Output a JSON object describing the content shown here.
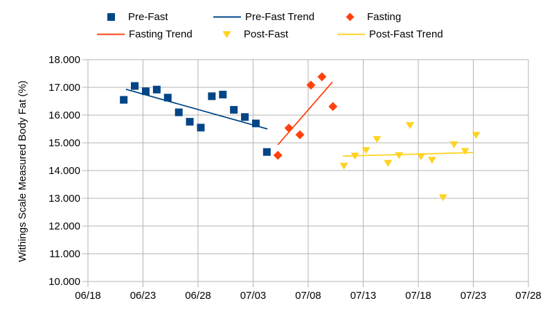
{
  "chart_data": {
    "type": "scatter",
    "title": "",
    "xlabel": "",
    "ylabel": "Withings Scale Measured Body Fat (%)",
    "background_color": "#ffffff",
    "grid_color": "#b3b3b3",
    "text_color": "#000000",
    "grid": "on",
    "legend_position": "top",
    "x_axis": {
      "tick_labels": [
        "06/18",
        "06/23",
        "06/28",
        "07/03",
        "07/08",
        "07/13",
        "07/18",
        "07/23",
        "07/28"
      ],
      "tick_interval_days": 5
    },
    "y_axis": {
      "min": 10,
      "max": 18,
      "step": 1,
      "tick_labels": [
        "10.000",
        "11.000",
        "12.000",
        "13.000",
        "14.000",
        "15.000",
        "16.000",
        "17.000",
        "18.000"
      ]
    },
    "series": [
      {
        "name": "Pre-Fast",
        "marker": "square",
        "color": "#004586",
        "points": [
          {
            "date": "06/21",
            "value": 16.55
          },
          {
            "date": "06/22",
            "value": 17.05
          },
          {
            "date": "06/23",
            "value": 16.86
          },
          {
            "date": "06/24",
            "value": 16.92
          },
          {
            "date": "06/25",
            "value": 16.63
          },
          {
            "date": "06/26",
            "value": 16.1
          },
          {
            "date": "06/27",
            "value": 15.76
          },
          {
            "date": "06/28",
            "value": 15.55
          },
          {
            "date": "06/29",
            "value": 16.68
          },
          {
            "date": "06/30",
            "value": 16.74
          },
          {
            "date": "07/01",
            "value": 16.19
          },
          {
            "date": "07/02",
            "value": 15.93
          },
          {
            "date": "07/03",
            "value": 15.7
          },
          {
            "date": "07/04",
            "value": 14.67
          }
        ]
      },
      {
        "name": "Fasting",
        "marker": "diamond",
        "color": "#ff420e",
        "points": [
          {
            "date": "07/05",
            "value": 14.55
          },
          {
            "date": "07/06",
            "value": 15.53
          },
          {
            "date": "07/07",
            "value": 15.29
          },
          {
            "date": "07/08",
            "value": 17.08
          },
          {
            "date": "07/09",
            "value": 17.38
          },
          {
            "date": "07/10",
            "value": 16.31
          }
        ]
      },
      {
        "name": "Post-Fast",
        "marker": "triangle-down",
        "color": "#ffd320",
        "points": [
          {
            "date": "07/11",
            "value": 14.17
          },
          {
            "date": "07/12",
            "value": 14.53
          },
          {
            "date": "07/13",
            "value": 14.73
          },
          {
            "date": "07/14",
            "value": 15.13
          },
          {
            "date": "07/15",
            "value": 14.27
          },
          {
            "date": "07/16",
            "value": 14.55
          },
          {
            "date": "07/17",
            "value": 15.63
          },
          {
            "date": "07/18",
            "value": 14.51
          },
          {
            "date": "07/19",
            "value": 14.38
          },
          {
            "date": "07/20",
            "value": 13.03
          },
          {
            "date": "07/21",
            "value": 14.94
          },
          {
            "date": "07/22",
            "value": 14.7
          },
          {
            "date": "07/23",
            "value": 15.28
          }
        ]
      }
    ],
    "trend_lines": [
      {
        "name": "Pre-Fast Trend",
        "color": "#004586",
        "start_day": 3.45,
        "start_value": 16.93,
        "end_day": 16.3,
        "end_value": 15.5
      },
      {
        "name": "Fasting Trend",
        "color": "#ff420e",
        "start_day": 17.25,
        "start_value": 14.93,
        "end_day": 22.2,
        "end_value": 17.19
      },
      {
        "name": "Post-Fast Trend",
        "color": "#ffd320",
        "start_day": 23.15,
        "start_value": 14.52,
        "end_day": 35.0,
        "end_value": 14.65
      }
    ],
    "legend": {
      "rows": [
        [
          {
            "label": "Pre-Fast",
            "marker": "square",
            "color": "#004586"
          },
          {
            "label": "Pre-Fast Trend",
            "marker": "line",
            "color": "#004586"
          },
          {
            "label": "Fasting",
            "marker": "diamond",
            "color": "#ff420e"
          }
        ],
        [
          {
            "label": "Fasting Trend",
            "marker": "line",
            "color": "#ff420e"
          },
          {
            "label": "Post-Fast",
            "marker": "triangle-down",
            "color": "#ffd320"
          },
          {
            "label": "Post-Fast Trend",
            "marker": "line",
            "color": "#ffd320"
          }
        ]
      ]
    }
  }
}
